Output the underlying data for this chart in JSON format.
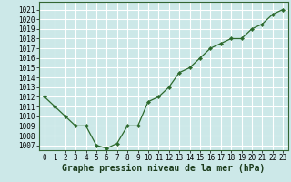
{
  "x": [
    0,
    1,
    2,
    3,
    4,
    5,
    6,
    7,
    8,
    9,
    10,
    11,
    12,
    13,
    14,
    15,
    16,
    17,
    18,
    19,
    20,
    21,
    22,
    23
  ],
  "y": [
    1012,
    1011,
    1010,
    1009,
    1009,
    1007,
    1006.7,
    1007.2,
    1009,
    1009,
    1011.5,
    1012,
    1013,
    1014.5,
    1015,
    1016,
    1017,
    1017.5,
    1018,
    1018,
    1019,
    1019.5,
    1020.5,
    1021
  ],
  "line_color": "#2d6a2d",
  "marker_color": "#2d6a2d",
  "bg_color": "#cce8e8",
  "grid_color": "#ffffff",
  "xlabel": "Graphe pression niveau de la mer (hPa)",
  "ylim_min": 1006.5,
  "ylim_max": 1021.8,
  "xlim_min": -0.5,
  "xlim_max": 23.5,
  "yticks": [
    1007,
    1008,
    1009,
    1010,
    1011,
    1012,
    1013,
    1014,
    1015,
    1016,
    1017,
    1018,
    1019,
    1020,
    1021
  ],
  "xticks": [
    0,
    1,
    2,
    3,
    4,
    5,
    6,
    7,
    8,
    9,
    10,
    11,
    12,
    13,
    14,
    15,
    16,
    17,
    18,
    19,
    20,
    21,
    22,
    23
  ],
  "xlabel_fontsize": 7,
  "tick_fontsize": 5.5
}
